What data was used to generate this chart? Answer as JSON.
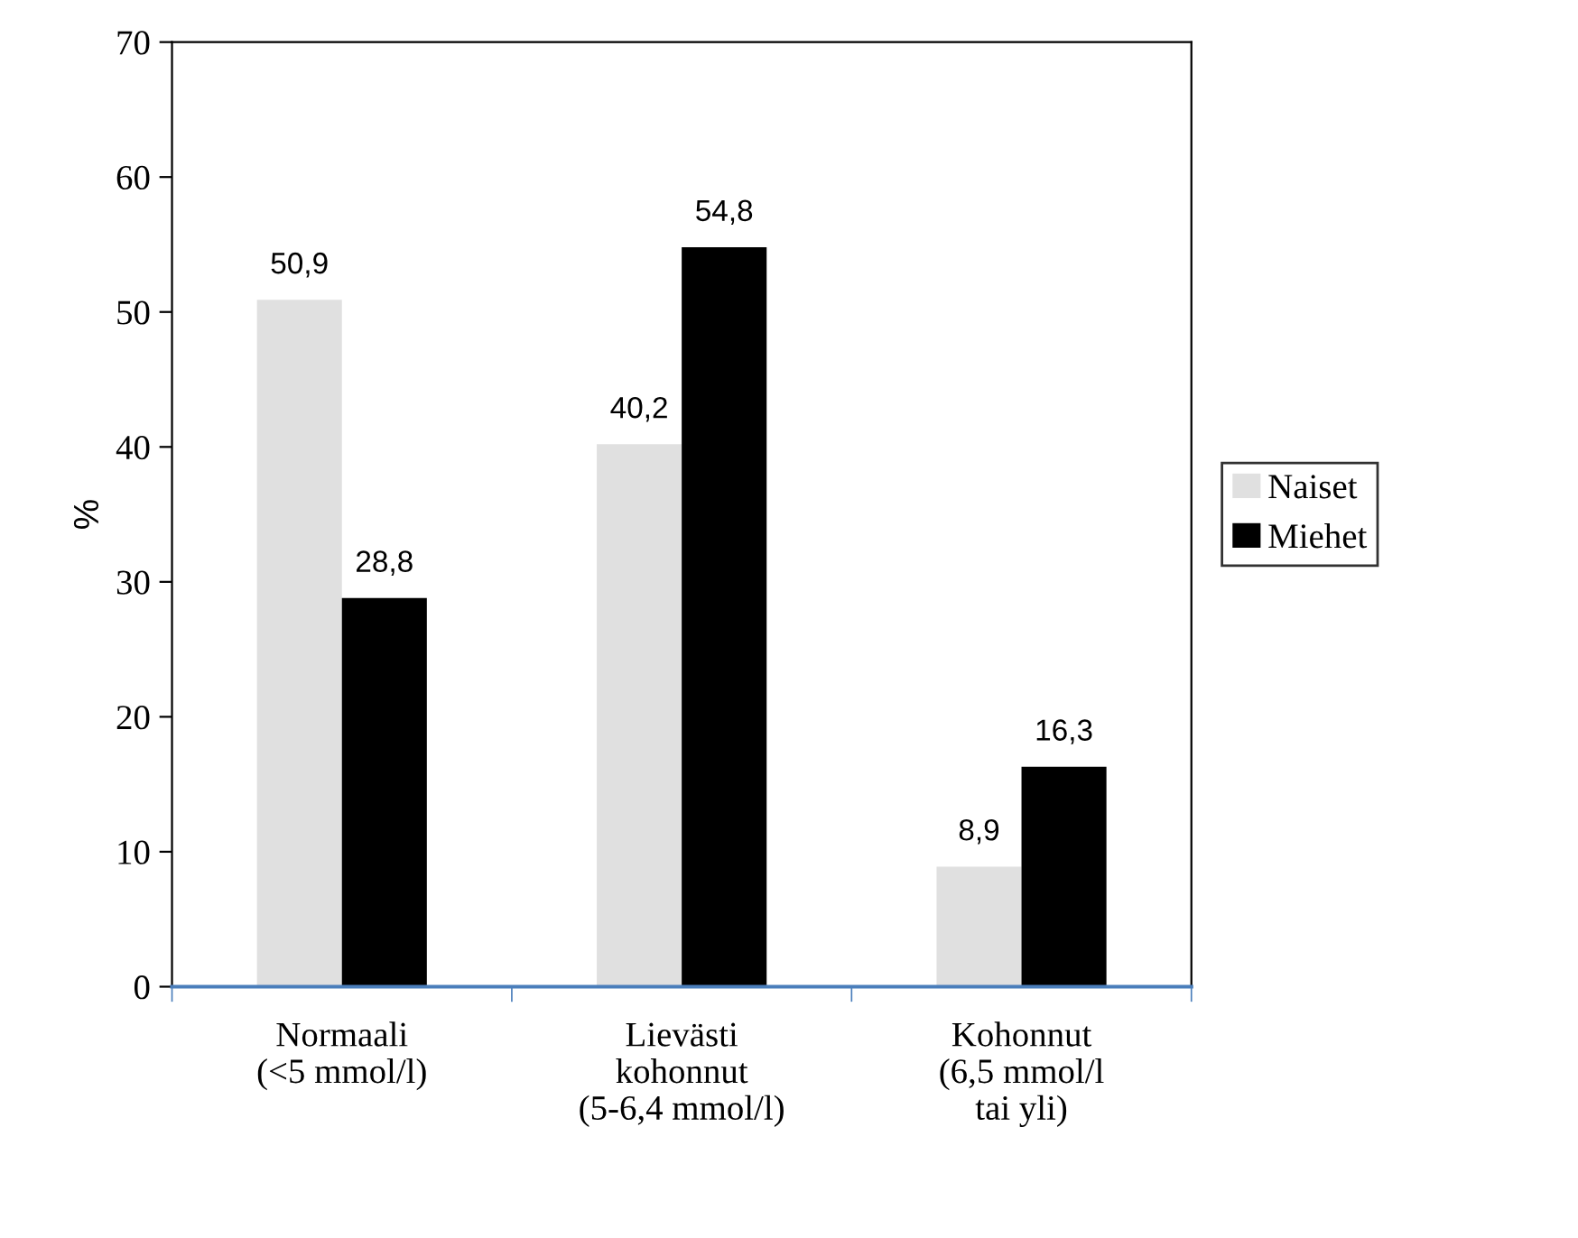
{
  "chart_data": {
    "type": "bar",
    "ylabel": "%",
    "categories": [
      "Normaali\n(<5 mmol/l)",
      "Lievästi\nkohonnut\n(5-6,4 mmol/l)",
      "Kohonnut\n(6,5 mmol/l\ntai yli)"
    ],
    "series": [
      {
        "name": "Naiset",
        "color": "#e0e0e0",
        "values": [
          50.9,
          40.2,
          8.9
        ],
        "value_labels": [
          "50,9",
          "40,2",
          "8,9"
        ]
      },
      {
        "name": "Miehet",
        "color": "#000000",
        "values": [
          28.8,
          54.8,
          16.3
        ],
        "value_labels": [
          "28,8",
          "54,8",
          "16,3"
        ]
      }
    ],
    "ylim": [
      0,
      70
    ],
    "yticks": [
      0,
      10,
      20,
      30,
      40,
      50,
      60,
      70
    ],
    "grid": false,
    "legend": "right"
  }
}
